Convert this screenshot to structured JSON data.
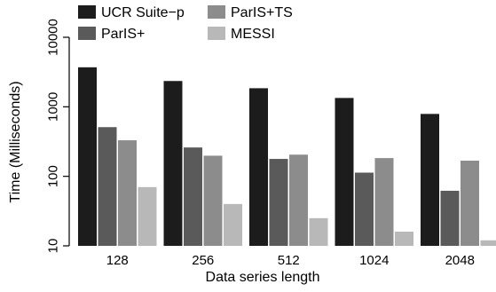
{
  "chart_data": {
    "type": "bar",
    "title": "",
    "xlabel": "Data series length",
    "ylabel": "Time (Milliseconds)",
    "yscale": "log",
    "ylim": [
      10,
      10000
    ],
    "yticks": [
      "10",
      "100",
      "1000",
      "10000"
    ],
    "grid": false,
    "legend_position": "top",
    "categories": [
      "128",
      "256",
      "512",
      "1024",
      "2048"
    ],
    "series": [
      {
        "name": "UCR Suite−p",
        "color": "#1c1c1c",
        "values": [
          3700,
          2350,
          1850,
          1340,
          790
        ]
      },
      {
        "name": "ParIS+",
        "color": "#5a5a5a",
        "values": [
          510,
          260,
          178,
          113,
          62
        ]
      },
      {
        "name": "ParIS+TS",
        "color": "#8c8c8c",
        "values": [
          330,
          198,
          205,
          183,
          168
        ]
      },
      {
        "name": "MESSI",
        "color": "#b8b8b8",
        "values": [
          70,
          40,
          25,
          16,
          12
        ]
      }
    ]
  }
}
